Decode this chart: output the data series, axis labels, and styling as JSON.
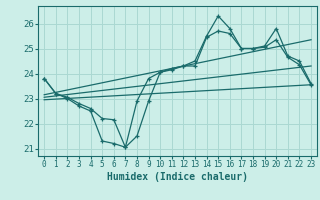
{
  "xlabel": "Humidex (Indice chaleur)",
  "bg_color": "#cceee8",
  "grid_color": "#aad8d2",
  "line_color": "#1a6b6b",
  "xlim": [
    -0.5,
    23.5
  ],
  "ylim": [
    20.7,
    26.7
  ],
  "yticks": [
    21,
    22,
    23,
    24,
    25,
    26
  ],
  "xticks": [
    0,
    1,
    2,
    3,
    4,
    5,
    6,
    7,
    8,
    9,
    10,
    11,
    12,
    13,
    14,
    15,
    16,
    17,
    18,
    19,
    20,
    21,
    22,
    23
  ],
  "line_main1_x": [
    0,
    1,
    2,
    3,
    4,
    5,
    6,
    7,
    8,
    9,
    10,
    11,
    12,
    13,
    14,
    15,
    16,
    17,
    18,
    19,
    20,
    21,
    22,
    23
  ],
  "line_main1_y": [
    23.8,
    23.2,
    23.0,
    22.7,
    22.5,
    21.3,
    21.2,
    21.05,
    21.5,
    22.9,
    24.05,
    24.2,
    24.3,
    24.5,
    25.5,
    26.3,
    25.8,
    25.0,
    25.0,
    25.1,
    25.8,
    24.7,
    24.5,
    23.6
  ],
  "line_main2_x": [
    0,
    1,
    2,
    3,
    4,
    5,
    6,
    7,
    8,
    9,
    10,
    11,
    12,
    13,
    14,
    15,
    16,
    17,
    18,
    19,
    20,
    21,
    22,
    23
  ],
  "line_main2_y": [
    23.8,
    23.2,
    23.05,
    22.8,
    22.6,
    22.2,
    22.15,
    21.05,
    22.9,
    23.8,
    24.05,
    24.15,
    24.3,
    24.3,
    25.45,
    25.7,
    25.6,
    25.0,
    25.0,
    25.05,
    25.35,
    24.65,
    24.35,
    23.55
  ],
  "line_trend1_x": [
    0,
    23
  ],
  "line_trend1_y": [
    23.15,
    25.35
  ],
  "line_trend2_x": [
    0,
    23
  ],
  "line_trend2_y": [
    23.05,
    24.3
  ],
  "line_trend3_x": [
    0,
    23
  ],
  "line_trend3_y": [
    22.95,
    23.55
  ]
}
